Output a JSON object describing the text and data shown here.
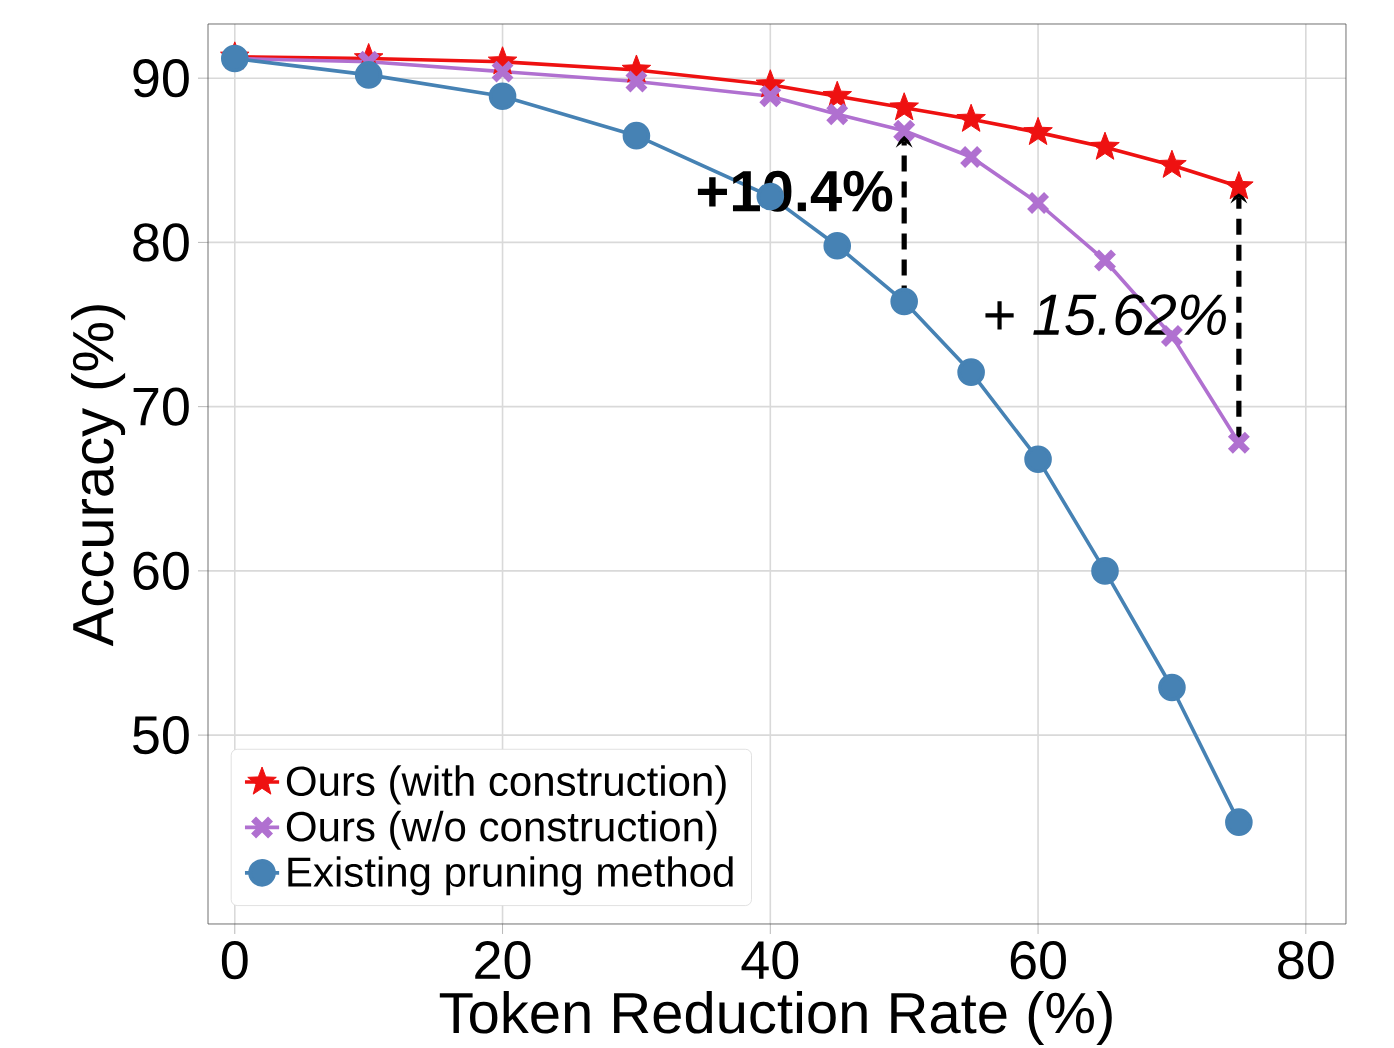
{
  "chart_data": {
    "type": "line",
    "xlabel": "Token Reduction Rate (%)",
    "ylabel": "Accuracy (%)",
    "xlim": [
      -2,
      83
    ],
    "ylim": [
      38.5,
      93.3
    ],
    "xticks": [
      0,
      20,
      40,
      60,
      80
    ],
    "yticks": [
      50,
      60,
      70,
      80,
      90
    ],
    "grid": true,
    "legend": "bottom left",
    "series": [
      {
        "name": "Ours (with construction)",
        "color": "#ee1111",
        "marker": "star",
        "line_style": "solid",
        "x": [
          0,
          10,
          20,
          30,
          40,
          45,
          50,
          55,
          60,
          65,
          70,
          75
        ],
        "values": [
          91.3,
          91.2,
          91.0,
          90.5,
          89.6,
          88.9,
          88.2,
          87.5,
          86.7,
          85.8,
          84.7,
          83.4
        ]
      },
      {
        "name": "Ours (w/o construction)",
        "color": "#b070d0",
        "marker": "cross",
        "line_style": "solid",
        "x": [
          0,
          10,
          20,
          30,
          40,
          45,
          50,
          55,
          60,
          65,
          70,
          75
        ],
        "values": [
          91.2,
          91.0,
          90.4,
          89.8,
          88.9,
          87.8,
          86.8,
          85.2,
          82.4,
          78.9,
          74.3,
          67.8
        ]
      },
      {
        "name": "Existing pruning method",
        "color": "#4682b4",
        "marker": "circle",
        "line_style": "solid",
        "x": [
          0,
          10,
          20,
          30,
          40,
          45,
          50,
          55,
          60,
          65,
          70,
          75
        ],
        "values": [
          91.2,
          90.2,
          88.9,
          86.5,
          82.8,
          79.8,
          76.4,
          72.1,
          66.8,
          60.0,
          52.9,
          44.7
        ]
      }
    ],
    "annotations": [
      {
        "text": "+10.4%",
        "x": 50,
        "y": 86.8
      },
      {
        "text": "+ 15.62%",
        "x": 75,
        "y": 83.4
      }
    ]
  }
}
